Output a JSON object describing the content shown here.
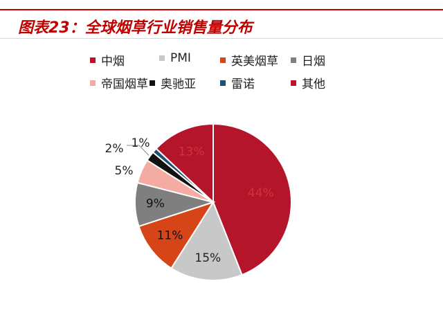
{
  "figure": {
    "title": "图表23：全球烟草行业销售量分布"
  },
  "colors": {
    "accent": "#c00000"
  },
  "chart_data": {
    "type": "pie",
    "title": "",
    "categories": [
      "中烟",
      "PMI",
      "英美烟草",
      "日烟",
      "帝国烟草",
      "奥驰亚",
      "雷诺",
      "其他"
    ],
    "values": [
      44,
      15,
      11,
      9,
      5,
      2,
      1,
      13
    ],
    "labels": [
      "44%",
      "15%",
      "11%",
      "9%",
      "5%",
      "2%",
      "1%",
      "13%"
    ],
    "colors": [
      "#b5152b",
      "#c8c8c8",
      "#d64518",
      "#7f7f7f",
      "#f4aca2",
      "#111111",
      "#1f4f73",
      "#b5152b"
    ],
    "legend_position": "top",
    "start_angle_deg": 0,
    "direction": "clockwise"
  }
}
